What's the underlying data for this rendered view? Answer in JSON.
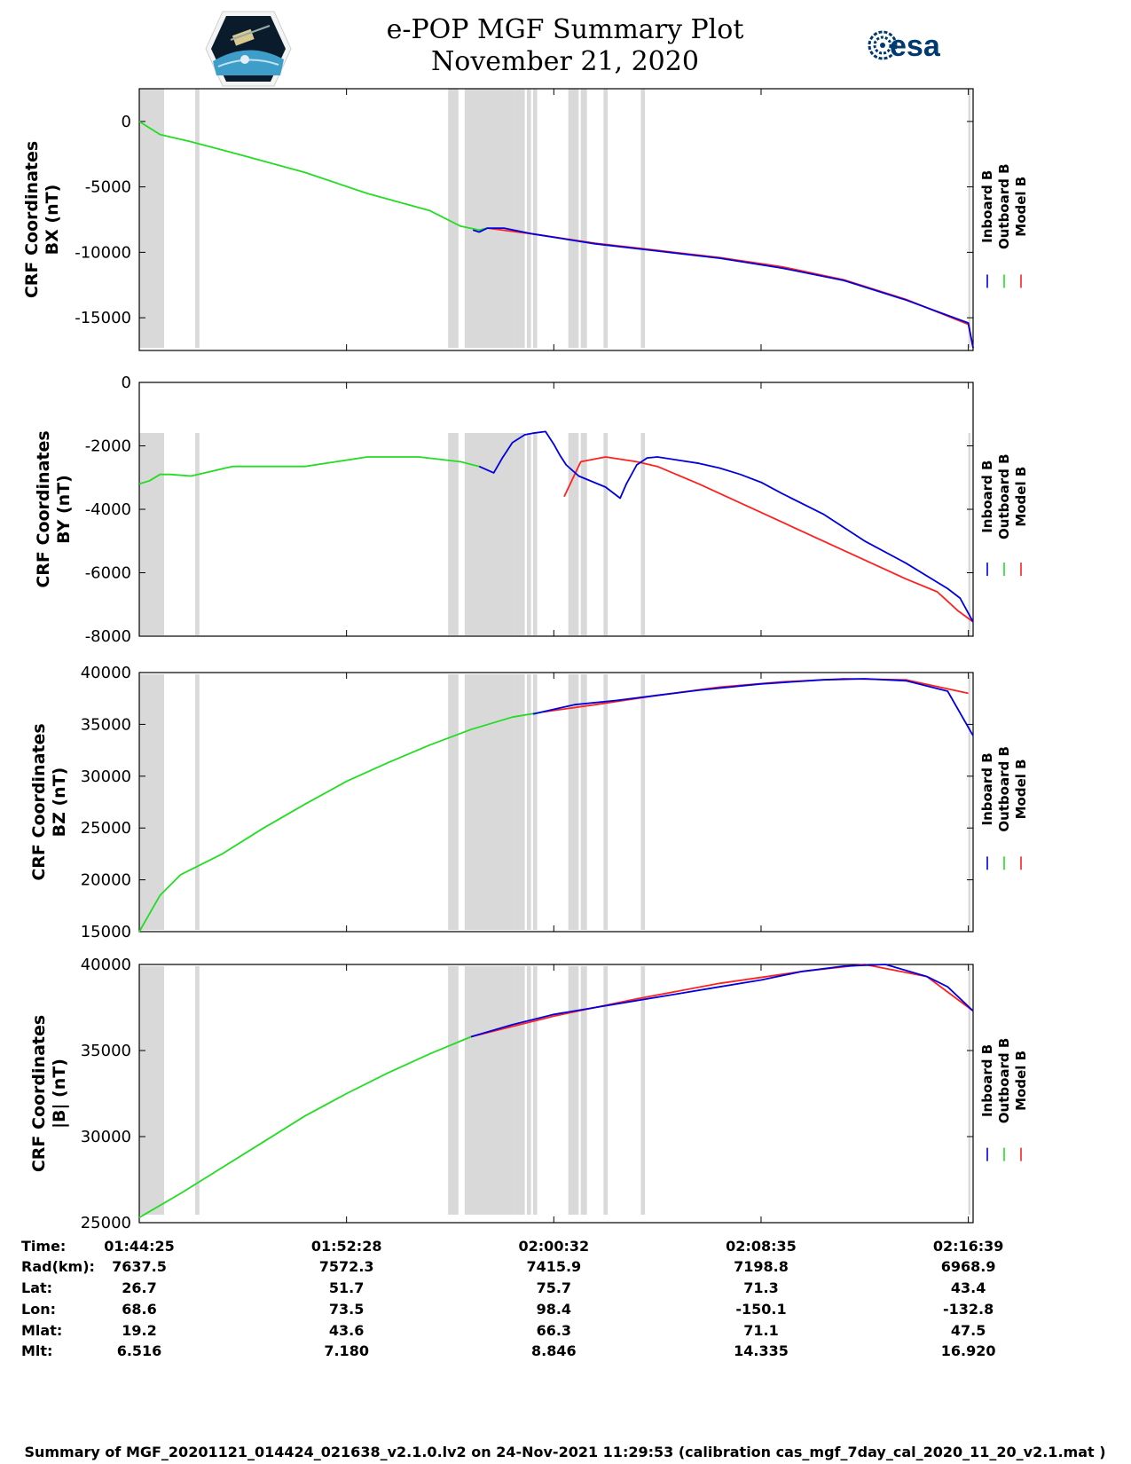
{
  "header": {
    "title_line1": "e-POP MGF Summary Plot",
    "title_line2": "November 21, 2020",
    "esa_label": "esa"
  },
  "colors": {
    "inboard": "#0000e0",
    "outboard": "#22dd22",
    "model": "#ff2020",
    "gap_shade": "#d9d9d9"
  },
  "legend_labels": [
    "Inboard B",
    "Outboard B",
    "Model B"
  ],
  "chart_data": [
    {
      "type": "line",
      "ylabel_line1": "CRF Coordinates",
      "ylabel_line2": "BX (nT)",
      "ylim": [
        -17500,
        2500
      ],
      "yticks": [
        0,
        -5000,
        -10000,
        -15000
      ],
      "ytick_labels": [
        "0",
        "-5000",
        "-10000",
        "-15000"
      ],
      "series": [
        {
          "name": "Outboard B",
          "points": [
            [
              0,
              0
            ],
            [
              0.4,
              -400
            ],
            [
              1,
              -1000
            ],
            [
              2.5,
              -1550
            ],
            [
              5,
              -2600
            ],
            [
              8,
              -3900
            ],
            [
              11,
              -5500
            ],
            [
              14,
              -6800
            ],
            [
              15.5,
              -8000
            ],
            [
              16.4,
              -8300
            ],
            [
              16.8,
              -8150
            ]
          ]
        },
        {
          "name": "Model B",
          "points": [
            [
              16.8,
              -8150
            ],
            [
              19,
              -8600
            ],
            [
              22,
              -9300
            ],
            [
              25,
              -9850
            ],
            [
              28,
              -10400
            ],
            [
              31,
              -11100
            ],
            [
              34,
              -12100
            ],
            [
              37,
              -13600
            ],
            [
              40,
              -15500
            ],
            [
              40.23,
              -17300
            ]
          ]
        },
        {
          "name": "Inboard B",
          "points": [
            [
              16.1,
              -8300
            ],
            [
              16.4,
              -8450
            ],
            [
              16.8,
              -8150
            ],
            [
              17.6,
              -8150
            ],
            [
              19,
              -8600
            ],
            [
              22,
              -9350
            ],
            [
              25,
              -9900
            ],
            [
              28,
              -10450
            ],
            [
              31,
              -11200
            ],
            [
              34,
              -12150
            ],
            [
              37,
              -13650
            ],
            [
              40,
              -15400
            ],
            [
              40.23,
              -17300
            ]
          ]
        }
      ]
    },
    {
      "type": "line",
      "ylabel_line1": "CRF Coordinates",
      "ylabel_line2": "BY (nT)",
      "ylim": [
        -8000,
        0
      ],
      "yticks": [
        0,
        -2000,
        -4000,
        -6000,
        -8000
      ],
      "ytick_labels": [
        "0",
        "-2000",
        "-4000",
        "-6000",
        "-8000"
      ],
      "series": [
        {
          "name": "Outboard B",
          "points": [
            [
              0,
              -3200
            ],
            [
              0.5,
              -3100
            ],
            [
              1,
              -2900
            ],
            [
              1.5,
              -2900
            ],
            [
              2.5,
              -2950
            ],
            [
              3.5,
              -2800
            ],
            [
              4.5,
              -2650
            ],
            [
              8,
              -2650
            ],
            [
              11,
              -2350
            ],
            [
              13.5,
              -2350
            ],
            [
              15.5,
              -2500
            ],
            [
              16.4,
              -2650
            ]
          ]
        },
        {
          "name": "Model B",
          "points": [
            [
              20.5,
              -3600
            ],
            [
              21.3,
              -2500
            ],
            [
              22.5,
              -2350
            ],
            [
              24,
              -2500
            ],
            [
              25,
              -2650
            ],
            [
              27,
              -3200
            ],
            [
              30,
              -4100
            ],
            [
              33,
              -5000
            ],
            [
              35,
              -5600
            ],
            [
              37,
              -6200
            ],
            [
              38.5,
              -6600
            ],
            [
              39,
              -6900
            ],
            [
              39.5,
              -7200
            ],
            [
              40.23,
              -7550
            ]
          ]
        },
        {
          "name": "Inboard B",
          "points": [
            [
              16.4,
              -2650
            ],
            [
              17.1,
              -2850
            ],
            [
              17.5,
              -2400
            ],
            [
              18,
              -1900
            ],
            [
              18.6,
              -1650
            ],
            [
              19,
              -1600
            ],
            [
              19.6,
              -1550
            ],
            [
              20,
              -1950
            ],
            [
              20.3,
              -2300
            ],
            [
              20.6,
              -2600
            ],
            [
              21.2,
              -2950
            ],
            [
              22.5,
              -3300
            ],
            [
              23.2,
              -3650
            ],
            [
              23.5,
              -3200
            ],
            [
              24,
              -2600
            ],
            [
              24.5,
              -2380
            ],
            [
              25,
              -2350
            ],
            [
              26,
              -2450
            ],
            [
              27,
              -2550
            ],
            [
              28,
              -2700
            ],
            [
              29,
              -2900
            ],
            [
              30,
              -3150
            ],
            [
              31,
              -3500
            ],
            [
              33,
              -4150
            ],
            [
              35,
              -5000
            ],
            [
              37,
              -5700
            ],
            [
              39,
              -6500
            ],
            [
              39.6,
              -6800
            ],
            [
              40.23,
              -7550
            ]
          ]
        }
      ]
    },
    {
      "type": "line",
      "ylabel_line1": "CRF Coordinates",
      "ylabel_line2": "BZ (nT)",
      "ylim": [
        15000,
        40000
      ],
      "yticks": [
        40000,
        35000,
        30000,
        25000,
        20000,
        15000
      ],
      "ytick_labels": [
        "40000",
        "35000",
        "30000",
        "25000",
        "20000",
        "15000"
      ],
      "series": [
        {
          "name": "Outboard B",
          "points": [
            [
              0,
              15000
            ],
            [
              1,
              18500
            ],
            [
              2,
              20500
            ],
            [
              4,
              22500
            ],
            [
              6,
              25000
            ],
            [
              8,
              27300
            ],
            [
              10,
              29500
            ],
            [
              12,
              31300
            ],
            [
              14,
              33000
            ],
            [
              16,
              34500
            ],
            [
              18,
              35700
            ],
            [
              19.5,
              36200
            ]
          ]
        },
        {
          "name": "Model B",
          "points": [
            [
              19.5,
              36200
            ],
            [
              22,
              36900
            ],
            [
              25,
              37800
            ],
            [
              28,
              38600
            ],
            [
              31,
              39100
            ],
            [
              34,
              39400
            ],
            [
              37,
              39300
            ],
            [
              40,
              38000
            ]
          ]
        },
        {
          "name": "Inboard B",
          "points": [
            [
              19,
              36000
            ],
            [
              21,
              36900
            ],
            [
              23,
              37300
            ],
            [
              25,
              37800
            ],
            [
              27,
              38300
            ],
            [
              30,
              38900
            ],
            [
              33,
              39300
            ],
            [
              35,
              39400
            ],
            [
              37,
              39200
            ],
            [
              39,
              38200
            ],
            [
              40.23,
              33900
            ]
          ]
        }
      ]
    },
    {
      "type": "line",
      "ylabel_line1": "CRF Coordinates",
      "ylabel_line2": "|B| (nT)",
      "ylim": [
        25000,
        40000
      ],
      "yticks": [
        40000,
        35000,
        30000,
        25000
      ],
      "ytick_labels": [
        "40000",
        "35000",
        "30000",
        "25000"
      ],
      "series": [
        {
          "name": "Outboard B",
          "points": [
            [
              0,
              25300
            ],
            [
              2,
              26700
            ],
            [
              4,
              28200
            ],
            [
              6,
              29700
            ],
            [
              8,
              31200
            ],
            [
              10,
              32500
            ],
            [
              12,
              33700
            ],
            [
              14,
              34800
            ],
            [
              16,
              35800
            ]
          ]
        },
        {
          "name": "Model B",
          "points": [
            [
              16,
              35800
            ],
            [
              20,
              37000
            ],
            [
              24,
              38000
            ],
            [
              28,
              38900
            ],
            [
              32,
              39600
            ],
            [
              35,
              40000
            ],
            [
              38,
              39300
            ],
            [
              40.23,
              37300
            ]
          ]
        },
        {
          "name": "Inboard B",
          "points": [
            [
              16,
              35800
            ],
            [
              18,
              36500
            ],
            [
              20,
              37100
            ],
            [
              22,
              37500
            ],
            [
              24,
              37900
            ],
            [
              26,
              38300
            ],
            [
              28,
              38700
            ],
            [
              30,
              39100
            ],
            [
              32,
              39600
            ],
            [
              34,
              39900
            ],
            [
              36,
              40000
            ],
            [
              38,
              39300
            ],
            [
              39,
              38700
            ],
            [
              40.23,
              37300
            ]
          ]
        }
      ]
    }
  ],
  "gaps": [
    [
      0,
      1.2
    ],
    [
      2.7,
      2.9
    ],
    [
      14.9,
      15.4
    ],
    [
      15.7,
      17.1
    ],
    [
      17.1,
      18.1
    ],
    [
      18.1,
      18.6
    ],
    [
      18.7,
      18.9
    ],
    [
      19,
      19.2
    ],
    [
      20.7,
      21.2
    ],
    [
      21.3,
      21.6
    ],
    [
      22.4,
      22.6
    ],
    [
      24.2,
      24.4
    ],
    [
      40.0,
      40.1
    ]
  ],
  "x_axis": {
    "ticks": [
      0,
      10,
      20,
      30,
      40
    ]
  },
  "table": {
    "row_labels": [
      "Time:",
      "Rad(km):",
      "Lat:",
      "Lon:",
      "Mlat:",
      "Mlt:"
    ],
    "columns": [
      [
        "01:44:25",
        "7637.5",
        "26.7",
        "68.6",
        "19.2",
        "6.516"
      ],
      [
        "01:52:28",
        "7572.3",
        "51.7",
        "73.5",
        "43.6",
        "7.180"
      ],
      [
        "02:00:32",
        "7415.9",
        "75.7",
        "98.4",
        "66.3",
        "8.846"
      ],
      [
        "02:08:35",
        "7198.8",
        "71.3",
        "-150.1",
        "71.1",
        "14.335"
      ],
      [
        "02:16:39",
        "6968.9",
        "43.4",
        "-132.8",
        "47.5",
        "16.920"
      ]
    ]
  },
  "footer": {
    "text": "Summary of MGF_20201121_014424_021638_v2.1.0.lv2 on 24-Nov-2021 11:29:53 (calibration cas_mgf_7day_cal_2020_11_20_v2.1.mat )"
  }
}
